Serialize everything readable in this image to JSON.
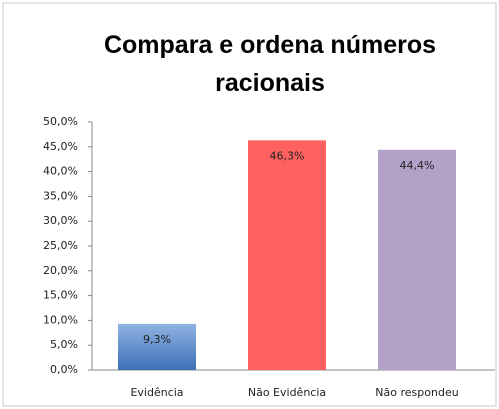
{
  "chart_data": {
    "type": "bar",
    "title": "Compara e ordena números racionais",
    "categories": [
      "Evidência",
      "Não Evidência",
      "Não respondeu"
    ],
    "values": [
      9.3,
      46.3,
      44.4
    ],
    "value_labels": [
      "9,3%",
      "46,3%",
      "44,4%"
    ],
    "colors": [
      "#4f81bd",
      "#ff6161",
      "#b3a2c7"
    ],
    "ylim": [
      0,
      50
    ],
    "yticks": [
      {
        "value": 0,
        "label": "0,0%"
      },
      {
        "value": 5,
        "label": "5,0%"
      },
      {
        "value": 10,
        "label": "10,0%"
      },
      {
        "value": 15,
        "label": "15,0%"
      },
      {
        "value": 20,
        "label": "20,0%"
      },
      {
        "value": 25,
        "label": "25,0%"
      },
      {
        "value": 30,
        "label": "30,0%"
      },
      {
        "value": 35,
        "label": "35,0%"
      },
      {
        "value": 40,
        "label": "40,0%"
      },
      {
        "value": 45,
        "label": "45,0%"
      },
      {
        "value": 50,
        "label": "50,0%"
      }
    ],
    "grid": false
  }
}
